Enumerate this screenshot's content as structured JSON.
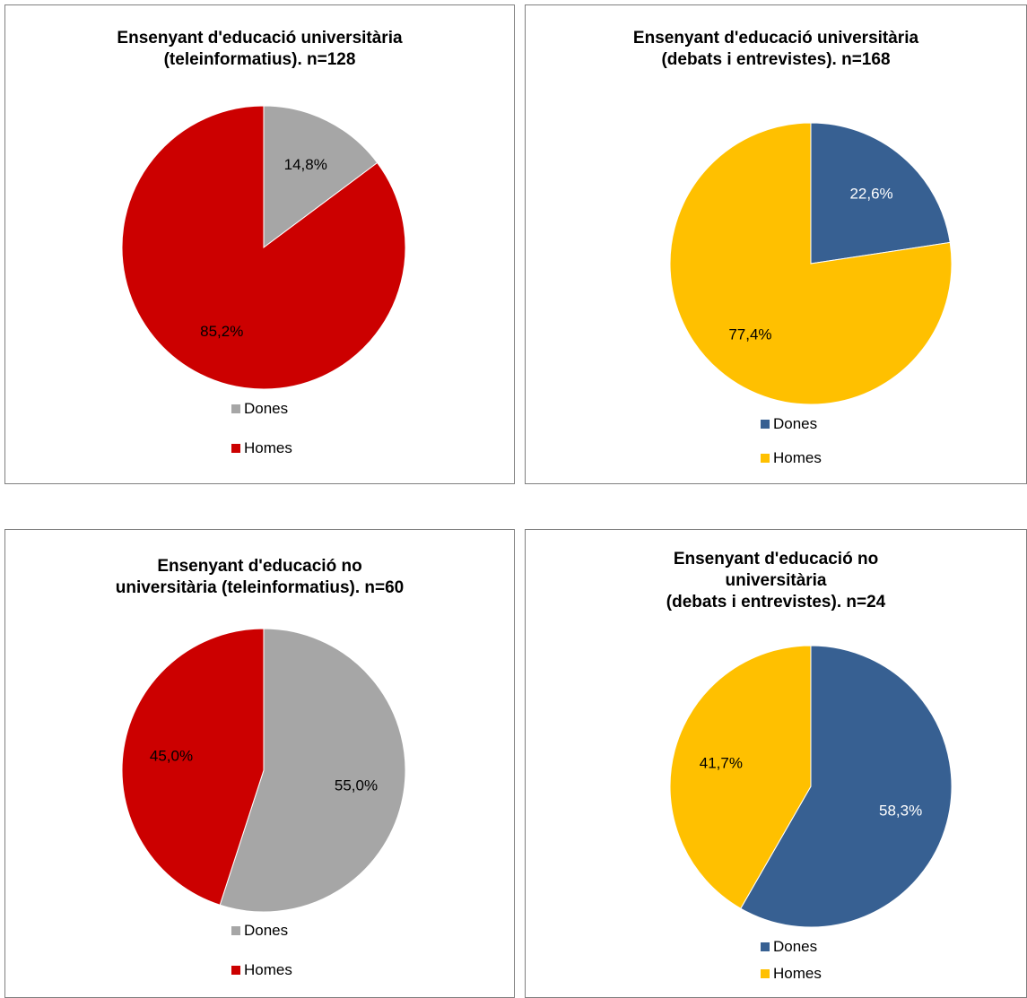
{
  "chart_data": [
    {
      "type": "pie",
      "title_lines": [
        "Ensenyant d'educació  universitària",
        "(teleinformatius). n=128"
      ],
      "categories": [
        "Dones",
        "Homes"
      ],
      "values": [
        14.8,
        85.2
      ],
      "labels": [
        "14,8%",
        "85,2%"
      ],
      "colors": [
        "#a6a6a6",
        "#cc0000"
      ],
      "label_colors": [
        "#000000",
        "#000000"
      ],
      "legend_position": "bottom"
    },
    {
      "type": "pie",
      "title_lines": [
        "Ensenyant d'educació universitària",
        "(debats i entrevistes). n=168"
      ],
      "categories": [
        "Dones",
        "Homes"
      ],
      "values": [
        22.6,
        77.4
      ],
      "labels": [
        "22,6%",
        "77,4%"
      ],
      "colors": [
        "#376092",
        "#ffc000"
      ],
      "label_colors": [
        "#ffffff",
        "#000000"
      ],
      "legend_position": "bottom"
    },
    {
      "type": "pie",
      "title_lines": [
        "Ensenyant d'educació no",
        "universitària (teleinformatius). n=60"
      ],
      "categories": [
        "Dones",
        "Homes"
      ],
      "values": [
        55.0,
        45.0
      ],
      "labels": [
        "55,0%",
        "45,0%"
      ],
      "colors": [
        "#a6a6a6",
        "#cc0000"
      ],
      "label_colors": [
        "#000000",
        "#000000"
      ],
      "legend_position": "bottom"
    },
    {
      "type": "pie",
      "title_lines": [
        "Ensenyant d'educació no",
        "universitària",
        "(debats i entrevistes). n=24"
      ],
      "categories": [
        "Dones",
        "Homes"
      ],
      "values": [
        58.3,
        41.7
      ],
      "labels": [
        "58,3%",
        "41,7%"
      ],
      "colors": [
        "#376092",
        "#ffc000"
      ],
      "label_colors": [
        "#ffffff",
        "#000000"
      ],
      "legend_position": "bottom"
    }
  ]
}
